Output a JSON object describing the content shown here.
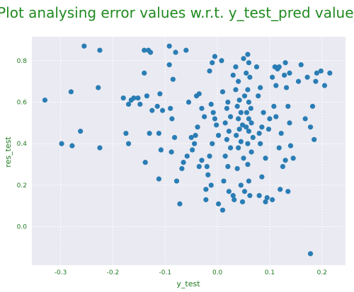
{
  "chart_data": {
    "type": "scatter",
    "title": "Plot analysing error values w.r.t. y_test_pred values",
    "xlabel": "y_test",
    "ylabel": "res_test",
    "xlim": [
      -0.355,
      0.245
    ],
    "ylim": [
      -0.185,
      0.915
    ],
    "xticks": [
      -0.3,
      -0.2,
      -0.1,
      0.0,
      0.1,
      0.2
    ],
    "xtick_labels": [
      "-0.3",
      "-0.2",
      "-0.1",
      "0.0",
      "0.1",
      "0.2"
    ],
    "yticks": [
      0.0,
      0.2,
      0.4,
      0.6,
      0.8
    ],
    "ytick_labels": [
      "0.0",
      "0.2",
      "0.4",
      "0.6",
      "0.8"
    ],
    "grid": true,
    "background": "#eaeaf2",
    "marker_color": "#2a7db4",
    "title_color": "#1f8a1f",
    "label_color": "#1f7a1f",
    "points": [
      [
        -0.255,
        0.87
      ],
      [
        -0.225,
        0.85
      ],
      [
        -0.33,
        0.61
      ],
      [
        -0.28,
        0.65
      ],
      [
        -0.228,
        0.67
      ],
      [
        -0.262,
        0.46
      ],
      [
        -0.298,
        0.4
      ],
      [
        -0.278,
        0.39
      ],
      [
        -0.225,
        0.38
      ],
      [
        -0.18,
        0.62
      ],
      [
        -0.165,
        0.61
      ],
      [
        -0.16,
        0.62
      ],
      [
        -0.152,
        0.62
      ],
      [
        -0.148,
        0.59
      ],
      [
        -0.17,
        0.59
      ],
      [
        -0.175,
        0.45
      ],
      [
        -0.17,
        0.4
      ],
      [
        -0.14,
        0.85
      ],
      [
        -0.132,
        0.85
      ],
      [
        -0.128,
        0.84
      ],
      [
        -0.14,
        0.74
      ],
      [
        -0.135,
        0.63
      ],
      [
        -0.125,
        0.56
      ],
      [
        -0.13,
        0.45
      ],
      [
        -0.138,
        0.31
      ],
      [
        -0.115,
        0.58
      ],
      [
        -0.11,
        0.64
      ],
      [
        -0.105,
        0.56
      ],
      [
        -0.112,
        0.45
      ],
      [
        -0.108,
        0.37
      ],
      [
        -0.112,
        0.23
      ],
      [
        -0.092,
        0.87
      ],
      [
        -0.08,
        0.84
      ],
      [
        -0.092,
        0.78
      ],
      [
        -0.085,
        0.71
      ],
      [
        -0.09,
        0.57
      ],
      [
        -0.087,
        0.52
      ],
      [
        -0.082,
        0.43
      ],
      [
        -0.088,
        0.36
      ],
      [
        -0.06,
        0.85
      ],
      [
        -0.055,
        0.6
      ],
      [
        -0.05,
        0.43
      ],
      [
        -0.058,
        0.34
      ],
      [
        -0.065,
        0.31
      ],
      [
        -0.068,
        0.28
      ],
      [
        -0.078,
        0.22
      ],
      [
        -0.072,
        0.11
      ],
      [
        -0.04,
        0.63
      ],
      [
        -0.035,
        0.64
      ],
      [
        -0.03,
        0.57
      ],
      [
        -0.025,
        0.53
      ],
      [
        -0.038,
        0.48
      ],
      [
        -0.042,
        0.44
      ],
      [
        -0.044,
        0.4
      ],
      [
        -0.048,
        0.37
      ],
      [
        -0.03,
        0.32
      ],
      [
        -0.035,
        0.29
      ],
      [
        -0.022,
        0.13
      ],
      [
        -0.01,
        0.79
      ],
      [
        -0.015,
        0.75
      ],
      [
        -0.005,
        0.82
      ],
      [
        0.008,
        0.8
      ],
      [
        -0.012,
        0.59
      ],
      [
        -0.008,
        0.55
      ],
      [
        -0.005,
        0.52
      ],
      [
        -0.002,
        0.49
      ],
      [
        0.002,
        0.44
      ],
      [
        -0.01,
        0.4
      ],
      [
        -0.015,
        0.34
      ],
      [
        -0.02,
        0.29
      ],
      [
        -0.018,
        0.25
      ],
      [
        -0.012,
        0.2
      ],
      [
        -0.022,
        0.18
      ],
      [
        0.002,
        0.11
      ],
      [
        0.01,
        0.65
      ],
      [
        0.02,
        0.6
      ],
      [
        0.018,
        0.57
      ],
      [
        0.025,
        0.53
      ],
      [
        0.015,
        0.5
      ],
      [
        0.022,
        0.46
      ],
      [
        0.018,
        0.42
      ],
      [
        0.025,
        0.38
      ],
      [
        0.015,
        0.34
      ],
      [
        0.02,
        0.29
      ],
      [
        0.012,
        0.22
      ],
      [
        0.022,
        0.17
      ],
      [
        0.03,
        0.15
      ],
      [
        0.01,
        0.08
      ],
      [
        0.03,
        0.73
      ],
      [
        0.035,
        0.77
      ],
      [
        0.04,
        0.7
      ],
      [
        0.035,
        0.66
      ],
      [
        0.042,
        0.61
      ],
      [
        0.038,
        0.58
      ],
      [
        0.045,
        0.55
      ],
      [
        0.04,
        0.52
      ],
      [
        0.048,
        0.49
      ],
      [
        0.042,
        0.47
      ],
      [
        0.036,
        0.44
      ],
      [
        0.045,
        0.41
      ],
      [
        0.04,
        0.38
      ],
      [
        0.05,
        0.33
      ],
      [
        0.038,
        0.28
      ],
      [
        0.045,
        0.2
      ],
      [
        0.032,
        0.13
      ],
      [
        0.05,
        0.81
      ],
      [
        0.058,
        0.83
      ],
      [
        0.06,
        0.79
      ],
      [
        0.055,
        0.74
      ],
      [
        0.062,
        0.72
      ],
      [
        0.058,
        0.66
      ],
      [
        0.052,
        0.63
      ],
      [
        0.06,
        0.6
      ],
      [
        0.064,
        0.57
      ],
      [
        0.056,
        0.55
      ],
      [
        0.06,
        0.52
      ],
      [
        0.065,
        0.5
      ],
      [
        0.055,
        0.48
      ],
      [
        0.06,
        0.46
      ],
      [
        0.068,
        0.43
      ],
      [
        0.058,
        0.4
      ],
      [
        0.065,
        0.36
      ],
      [
        0.058,
        0.3
      ],
      [
        0.06,
        0.22
      ],
      [
        0.052,
        0.17
      ],
      [
        0.062,
        0.15
      ],
      [
        0.048,
        0.12
      ],
      [
        0.075,
        0.77
      ],
      [
        0.082,
        0.67
      ],
      [
        0.078,
        0.63
      ],
      [
        0.088,
        0.55
      ],
      [
        0.085,
        0.48
      ],
      [
        0.08,
        0.45
      ],
      [
        0.082,
        0.4
      ],
      [
        0.092,
        0.33
      ],
      [
        0.085,
        0.24
      ],
      [
        0.095,
        0.14
      ],
      [
        0.08,
        0.15
      ],
      [
        0.092,
        0.12
      ],
      [
        0.1,
        0.52
      ],
      [
        0.098,
        0.47
      ],
      [
        0.108,
        0.58
      ],
      [
        0.105,
        0.72
      ],
      [
        0.11,
        0.77
      ],
      [
        0.115,
        0.76
      ],
      [
        0.118,
        0.77
      ],
      [
        0.112,
        0.68
      ],
      [
        0.112,
        0.53
      ],
      [
        0.122,
        0.45
      ],
      [
        0.118,
        0.38
      ],
      [
        0.12,
        0.18
      ],
      [
        0.105,
        0.13
      ],
      [
        0.13,
        0.79
      ],
      [
        0.128,
        0.73
      ],
      [
        0.132,
        0.67
      ],
      [
        0.138,
        0.74
      ],
      [
        0.135,
        0.58
      ],
      [
        0.138,
        0.5
      ],
      [
        0.13,
        0.32
      ],
      [
        0.125,
        0.29
      ],
      [
        0.135,
        0.17
      ],
      [
        0.14,
        0.39
      ],
      [
        0.16,
        0.78
      ],
      [
        0.172,
        0.72
      ],
      [
        0.168,
        0.52
      ],
      [
        0.178,
        0.48
      ],
      [
        0.155,
        0.7
      ],
      [
        0.145,
        0.33
      ],
      [
        0.188,
        0.7
      ],
      [
        0.19,
        0.74
      ],
      [
        0.198,
        0.75
      ],
      [
        0.205,
        0.68
      ],
      [
        0.215,
        0.74
      ],
      [
        0.185,
        0.42
      ],
      [
        0.182,
        0.58
      ],
      [
        0.178,
        -0.13
      ]
    ]
  }
}
